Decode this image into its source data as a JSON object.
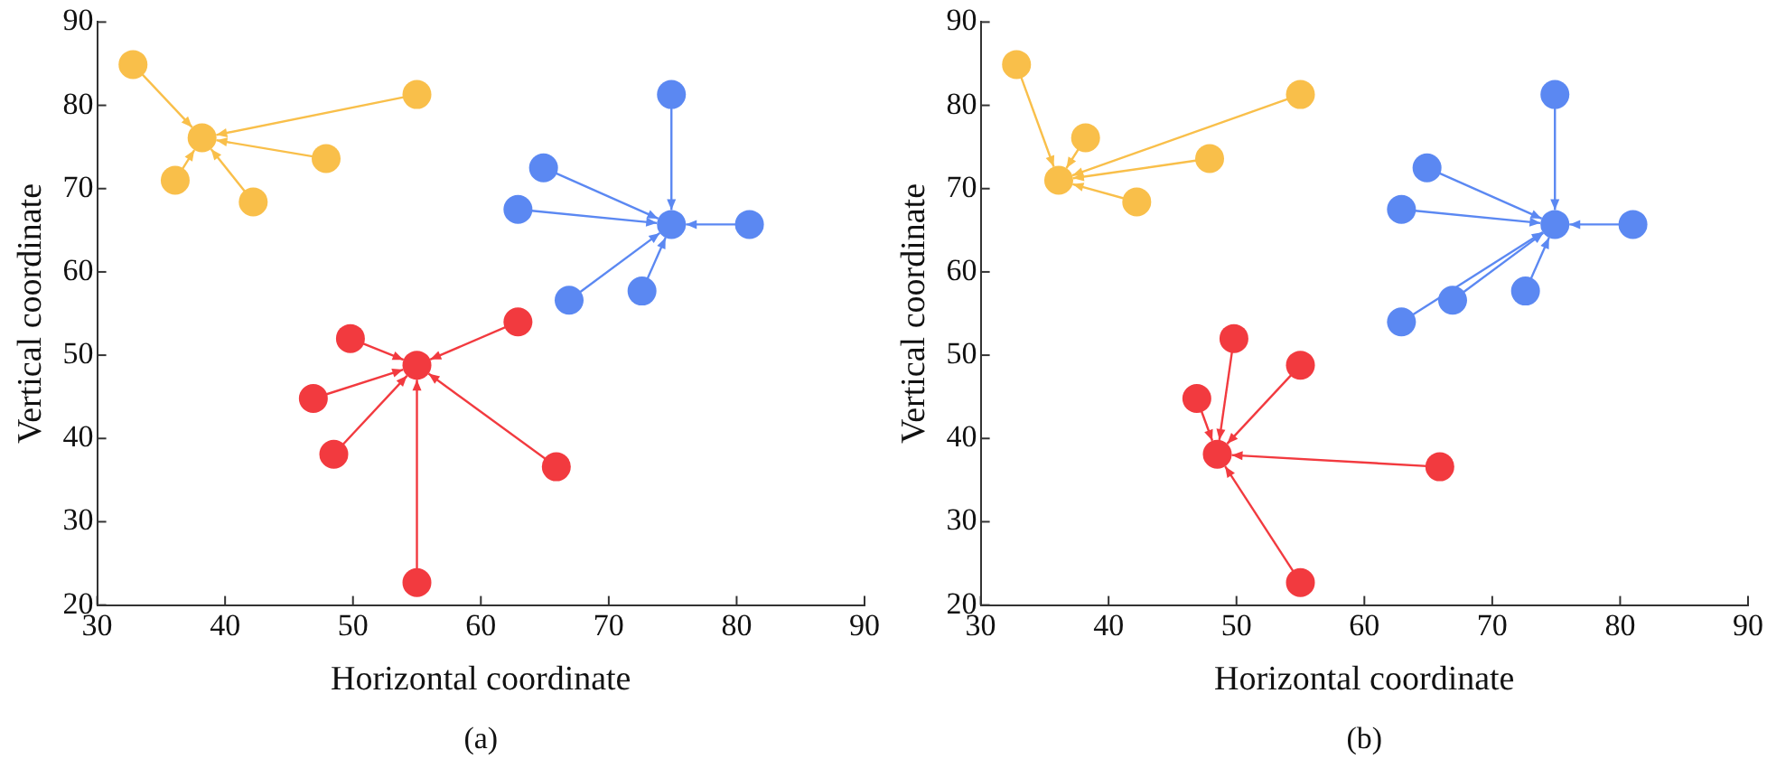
{
  "chart_data": [
    {
      "type": "scatter",
      "xlabel": "Horizontal coordinate",
      "ylabel": "Vertical coordinate",
      "annotations": [
        "(a)"
      ],
      "xlim": [
        30,
        90
      ],
      "xticks": [
        30,
        40,
        50,
        60,
        70,
        80,
        90
      ],
      "ylim": [
        20,
        90
      ],
      "yticks": [
        20,
        30,
        40,
        50,
        60,
        70,
        80,
        90
      ],
      "grid": false,
      "legend": false,
      "marker": "circle",
      "series": [
        {
          "color": "#f9bf4a",
          "x": [
            38.2,
            32.8,
            55.0,
            47.9,
            36.1,
            42.2
          ],
          "values": [
            76.1,
            84.9,
            81.3,
            73.6,
            71.0,
            68.4
          ]
        },
        {
          "color": "#5b88f2",
          "x": [
            74.9,
            74.9,
            64.9,
            62.9,
            81.0,
            66.9,
            72.6
          ],
          "values": [
            65.7,
            81.3,
            72.5,
            67.5,
            65.7,
            56.6,
            57.7
          ]
        },
        {
          "color": "#f23a3f",
          "x": [
            55.0,
            49.8,
            62.9,
            46.9,
            48.5,
            65.9,
            55.0
          ],
          "values": [
            48.8,
            52.0,
            54.0,
            44.8,
            38.1,
            36.6,
            22.7
          ]
        }
      ]
    },
    {
      "type": "scatter",
      "xlabel": "Horizontal coordinate",
      "ylabel": "Vertical coordinate",
      "annotations": [
        "(b)"
      ],
      "xlim": [
        30,
        90
      ],
      "xticks": [
        30,
        40,
        50,
        60,
        70,
        80,
        90
      ],
      "ylim": [
        20,
        90
      ],
      "yticks": [
        20,
        30,
        40,
        50,
        60,
        70,
        80,
        90
      ],
      "grid": false,
      "legend": false,
      "marker": "circle",
      "series": [
        {
          "color": "#f9bf4a",
          "x": [
            36.1,
            32.8,
            38.2,
            55.0,
            47.9,
            42.2
          ],
          "values": [
            71.0,
            84.9,
            76.1,
            81.3,
            73.6,
            68.4
          ]
        },
        {
          "color": "#5b88f2",
          "x": [
            74.9,
            74.9,
            64.9,
            62.9,
            81.0,
            62.9,
            66.9,
            72.6
          ],
          "values": [
            65.7,
            81.3,
            72.5,
            67.5,
            65.7,
            54.0,
            56.6,
            57.7
          ]
        },
        {
          "color": "#f23a3f",
          "x": [
            48.5,
            46.9,
            49.8,
            55.0,
            65.9,
            55.0
          ],
          "values": [
            38.1,
            44.8,
            52.0,
            48.8,
            36.6,
            22.7
          ]
        }
      ]
    }
  ]
}
